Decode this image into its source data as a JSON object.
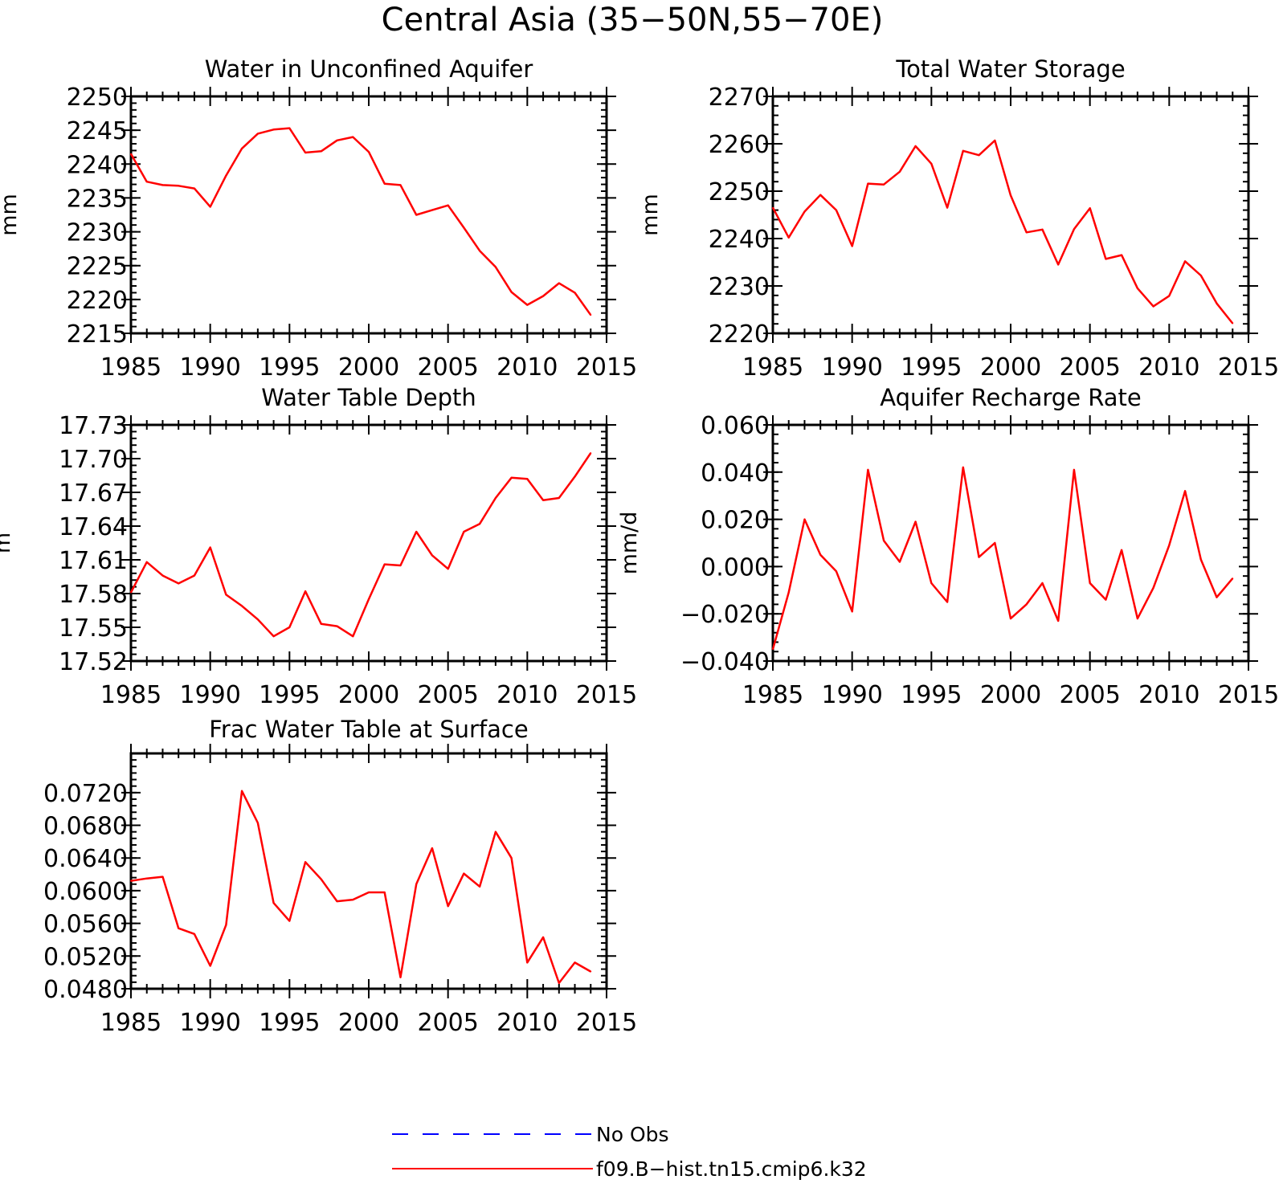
{
  "figure_title": "Central Asia (35−50N,55−70E)",
  "colors": {
    "model": "#ff0000",
    "obs": "#0000ff",
    "axes": "#000000"
  },
  "legend": {
    "placement": "bottom-center",
    "entries": [
      {
        "label": "No Obs",
        "style": "dashed",
        "color": "#0000ff"
      },
      {
        "label": "f09.B−hist.tn15.cmip6.k32",
        "style": "solid",
        "color": "#ff0000"
      }
    ]
  },
  "chart_data": [
    {
      "id": "unconfined",
      "type": "line",
      "title": "Water in Unconfined Aquifer",
      "xlabel": "",
      "ylabel": "mm",
      "xlim": [
        1985,
        2015
      ],
      "ylim": [
        2215,
        2250
      ],
      "xticks": [
        1985,
        1990,
        1995,
        2000,
        2005,
        2010,
        2015
      ],
      "xtick_labels": [
        "1985",
        "1990",
        "1995",
        "2000",
        "2005",
        "2010",
        "2015"
      ],
      "yticks": [
        2215,
        2220,
        2225,
        2230,
        2235,
        2240,
        2245,
        2250
      ],
      "ytick_labels": [
        "2215",
        "2220",
        "2225",
        "2230",
        "2235",
        "2240",
        "2245",
        "2250"
      ],
      "yminor": 1,
      "series": [
        {
          "name": "f09.B−hist.tn15.cmip6.k32",
          "x": [
            1985,
            1986,
            1987,
            1988,
            1989,
            1990,
            1991,
            1992,
            1993,
            1994,
            1995,
            1996,
            1997,
            1998,
            1999,
            2000,
            2001,
            2002,
            2003,
            2004,
            2005,
            2006,
            2007,
            2008,
            2009,
            2010,
            2011,
            2012,
            2013,
            2014
          ],
          "y": [
            2241.5,
            2237.4,
            2236.9,
            2236.8,
            2236.4,
            2233.7,
            2238.3,
            2242.3,
            2244.5,
            2245.1,
            2245.3,
            2241.7,
            2241.9,
            2243.5,
            2244.0,
            2241.8,
            2237.1,
            2236.9,
            2232.5,
            2233.2,
            2233.9,
            2230.6,
            2227.2,
            2224.8,
            2221.1,
            2219.2,
            2220.5,
            2222.4,
            2221.0,
            2217.7
          ]
        }
      ]
    },
    {
      "id": "tws",
      "type": "line",
      "title": "Total Water Storage",
      "xlabel": "",
      "ylabel": "mm",
      "xlim": [
        1985,
        2015
      ],
      "ylim": [
        2220,
        2270
      ],
      "xticks": [
        1985,
        1990,
        1995,
        2000,
        2005,
        2010,
        2015
      ],
      "xtick_labels": [
        "1985",
        "1990",
        "1995",
        "2000",
        "2005",
        "2010",
        "2015"
      ],
      "yticks": [
        2220,
        2230,
        2240,
        2250,
        2260,
        2270
      ],
      "ytick_labels": [
        "2220",
        "2230",
        "2240",
        "2250",
        "2260",
        "2270"
      ],
      "yminor": 2,
      "series": [
        {
          "name": "f09.B−hist.tn15.cmip6.k32",
          "x": [
            1985,
            1986,
            1987,
            1988,
            1989,
            1990,
            1991,
            1992,
            1993,
            1994,
            1995,
            1996,
            1997,
            1998,
            1999,
            2000,
            2001,
            2002,
            2003,
            2004,
            2005,
            2006,
            2007,
            2008,
            2009,
            2010,
            2011,
            2012,
            2013,
            2014
          ],
          "y": [
            2246.5,
            2240.2,
            2245.7,
            2249.2,
            2246.0,
            2238.4,
            2251.6,
            2251.4,
            2254.1,
            2259.5,
            2255.8,
            2246.5,
            2258.5,
            2257.6,
            2260.7,
            2249.1,
            2241.3,
            2241.9,
            2234.5,
            2242.0,
            2246.4,
            2235.7,
            2236.5,
            2229.5,
            2225.7,
            2227.9,
            2235.2,
            2232.2,
            2226.3,
            2222.1
          ]
        }
      ]
    },
    {
      "id": "wtd",
      "type": "line",
      "title": "Water Table Depth",
      "xlabel": "",
      "ylabel": "m",
      "xlim": [
        1985,
        2015
      ],
      "ylim": [
        17.52,
        17.73
      ],
      "xticks": [
        1985,
        1990,
        1995,
        2000,
        2005,
        2010,
        2015
      ],
      "xtick_labels": [
        "1985",
        "1990",
        "1995",
        "2000",
        "2005",
        "2010",
        "2015"
      ],
      "yticks": [
        17.52,
        17.55,
        17.58,
        17.61,
        17.64,
        17.67,
        17.7,
        17.73
      ],
      "ytick_labels": [
        "17.52",
        "17.55",
        "17.58",
        "17.61",
        "17.64",
        "17.67",
        "17.70",
        "17.73"
      ],
      "yminor": 0.006,
      "series": [
        {
          "name": "f09.B−hist.tn15.cmip6.k32",
          "x": [
            1985,
            1986,
            1987,
            1988,
            1989,
            1990,
            1991,
            1992,
            1993,
            1994,
            1995,
            1996,
            1997,
            1998,
            1999,
            2000,
            2001,
            2002,
            2003,
            2004,
            2005,
            2006,
            2007,
            2008,
            2009,
            2010,
            2011,
            2012,
            2013,
            2014
          ],
          "y": [
            17.581,
            17.608,
            17.596,
            17.589,
            17.596,
            17.621,
            17.579,
            17.569,
            17.557,
            17.542,
            17.55,
            17.582,
            17.553,
            17.551,
            17.542,
            17.575,
            17.606,
            17.605,
            17.635,
            17.614,
            17.602,
            17.635,
            17.642,
            17.665,
            17.683,
            17.682,
            17.663,
            17.665,
            17.684,
            17.705
          ]
        }
      ]
    },
    {
      "id": "recharge",
      "type": "line",
      "title": "Aquifer Recharge Rate",
      "xlabel": "",
      "ylabel": "mm/d",
      "xlim": [
        1985,
        2015
      ],
      "ylim": [
        -0.04,
        0.06
      ],
      "xticks": [
        1985,
        1990,
        1995,
        2000,
        2005,
        2010,
        2015
      ],
      "xtick_labels": [
        "1985",
        "1990",
        "1995",
        "2000",
        "2005",
        "2010",
        "2015"
      ],
      "yticks": [
        -0.04,
        -0.02,
        0.0,
        0.02,
        0.04,
        0.06
      ],
      "ytick_labels": [
        "−0.040",
        "−0.020",
        "0.000",
        "0.020",
        "0.040",
        "0.060"
      ],
      "yminor": 0.004,
      "series": [
        {
          "name": "f09.B−hist.tn15.cmip6.k32",
          "x": [
            1985,
            1986,
            1987,
            1988,
            1989,
            1990,
            1991,
            1992,
            1993,
            1994,
            1995,
            1996,
            1997,
            1998,
            1999,
            2000,
            2001,
            2002,
            2003,
            2004,
            2005,
            2006,
            2007,
            2008,
            2009,
            2010,
            2011,
            2012,
            2013,
            2014
          ],
          "y": [
            -0.035,
            -0.011,
            0.02,
            0.005,
            -0.002,
            -0.019,
            0.041,
            0.011,
            0.002,
            0.019,
            -0.007,
            -0.015,
            0.042,
            0.004,
            0.01,
            -0.022,
            -0.016,
            -0.007,
            -0.023,
            0.041,
            -0.007,
            -0.014,
            0.007,
            -0.022,
            -0.009,
            0.009,
            0.032,
            0.003,
            -0.013,
            -0.005
          ]
        }
      ]
    },
    {
      "id": "frac",
      "type": "line",
      "title": "Frac Water Table at Surface",
      "xlabel": "",
      "ylabel": "",
      "xlim": [
        1985,
        2015
      ],
      "ylim": [
        0.048,
        0.0768
      ],
      "xticks": [
        1985,
        1990,
        1995,
        2000,
        2005,
        2010,
        2015
      ],
      "xtick_labels": [
        "1985",
        "1990",
        "1995",
        "2000",
        "2005",
        "2010",
        "2015"
      ],
      "yticks": [
        0.048,
        0.052,
        0.056,
        0.06,
        0.064,
        0.068,
        0.072
      ],
      "ytick_labels": [
        "0.0480",
        "0.0520",
        "0.0560",
        "0.0600",
        "0.0640",
        "0.0680",
        "0.0720"
      ],
      "yminor": 0.0008,
      "series": [
        {
          "name": "f09.B−hist.tn15.cmip6.k32",
          "x": [
            1985,
            1986,
            1987,
            1988,
            1989,
            1990,
            1991,
            1992,
            1993,
            1994,
            1995,
            1996,
            1997,
            1998,
            1999,
            2000,
            2001,
            2002,
            2003,
            2004,
            2005,
            2006,
            2007,
            2008,
            2009,
            2010,
            2011,
            2012,
            2013,
            2014
          ],
          "y": [
            0.0612,
            0.0615,
            0.0617,
            0.0554,
            0.0547,
            0.0508,
            0.0558,
            0.0722,
            0.0683,
            0.0585,
            0.0563,
            0.0635,
            0.0614,
            0.0587,
            0.0589,
            0.0598,
            0.0598,
            0.0494,
            0.0608,
            0.0652,
            0.0581,
            0.0621,
            0.0605,
            0.0672,
            0.064,
            0.0512,
            0.0543,
            0.0487,
            0.0512,
            0.0501
          ]
        }
      ]
    }
  ]
}
